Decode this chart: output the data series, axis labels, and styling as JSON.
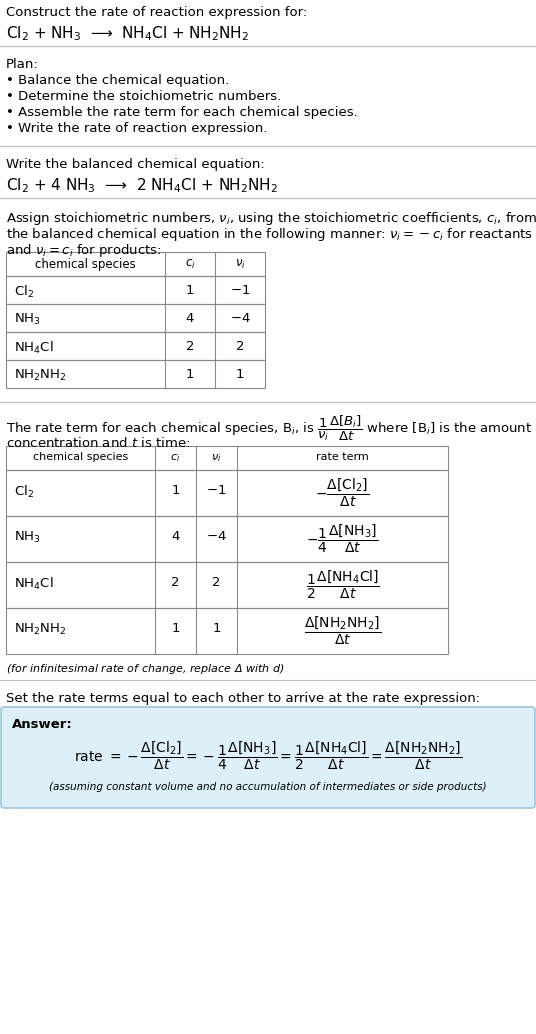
{
  "title_line1": "Construct the rate of reaction expression for:",
  "reaction_unbalanced": "Cl$_2$ + NH$_3$  ⟶  NH$_4$Cl + NH$_2$NH$_2$",
  "plan_header": "Plan:",
  "plan_bullets": [
    "• Balance the chemical equation.",
    "• Determine the stoichiometric numbers.",
    "• Assemble the rate term for each chemical species.",
    "• Write the rate of reaction expression."
  ],
  "balanced_header": "Write the balanced chemical equation:",
  "reaction_balanced": "Cl$_2$ + 4 NH$_3$  ⟶  2 NH$_4$Cl + NH$_2$NH$_2$",
  "table1_data": [
    [
      "Cl$_2$",
      "1",
      "$-1$"
    ],
    [
      "NH$_3$",
      "4",
      "$-4$"
    ],
    [
      "NH$_4$Cl",
      "2",
      "2"
    ],
    [
      "NH$_2$NH$_2$",
      "1",
      "1"
    ]
  ],
  "table2_data_species": [
    "Cl$_2$",
    "NH$_3$",
    "NH$_4$Cl",
    "NH$_2$NH$_2$"
  ],
  "table2_data_ci": [
    "1",
    "4",
    "2",
    "1"
  ],
  "table2_data_vi": [
    "$-1$",
    "$-4$",
    "2",
    "1"
  ],
  "table2_rate_terms": [
    "$-\\dfrac{\\Delta[\\mathrm{Cl_2}]}{\\Delta t}$",
    "$-\\dfrac{1}{4}\\dfrac{\\Delta[\\mathrm{NH_3}]}{\\Delta t}$",
    "$\\dfrac{1}{2}\\dfrac{\\Delta[\\mathrm{NH_4Cl}]}{\\Delta t}$",
    "$\\dfrac{\\Delta[\\mathrm{NH_2NH_2}]}{\\Delta t}$"
  ],
  "infinitesimal_note": "(for infinitesimal rate of change, replace Δ with $d$)",
  "set_equal_header": "Set the rate terms equal to each other to arrive at the rate expression:",
  "answer_label": "Answer:",
  "answer_box_color": "#ddf0f8",
  "answer_box_border": "#90bbd0",
  "assuming_note": "(assuming constant volume and no accumulation of intermediates or side products)",
  "bg_color": "#ffffff",
  "text_color": "#000000",
  "table_border_color": "#888888",
  "separator_color": "#bbbbbb",
  "fs": 9.5,
  "fs_sm": 8.0,
  "fs_eq": 11.0
}
